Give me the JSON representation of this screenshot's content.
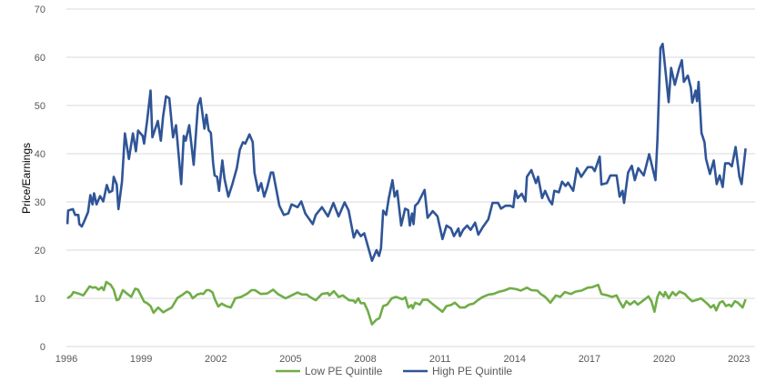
{
  "chart_data": {
    "type": "line",
    "title": "",
    "xlabel": "",
    "ylabel": "Price/Earnings",
    "xlim": [
      1996,
      2023.7
    ],
    "ylim": [
      0,
      70
    ],
    "yticks": [
      0,
      10,
      20,
      30,
      40,
      50,
      60,
      70
    ],
    "xticks": [
      1996,
      1999,
      2002,
      2005,
      2008,
      2011,
      2014,
      2017,
      2020,
      2023
    ],
    "ytick_labels": [
      "0",
      "10",
      "20",
      "30",
      "40",
      "50",
      "60",
      "70"
    ],
    "xtick_labels": [
      "1996",
      "1999",
      "2002",
      "2005",
      "2008",
      "2011",
      "2014",
      "2017",
      "2020",
      "2023"
    ],
    "grid": "horizontal",
    "legend_position": "bottom-center",
    "series": [
      {
        "name": "Low PE Quintile",
        "color": "#70AD47",
        "x": [
          1996.04,
          1996.2,
          1996.28,
          1996.48,
          1996.68,
          1996.8,
          1996.93,
          1997.05,
          1997.17,
          1997.29,
          1997.42,
          1997.5,
          1997.6,
          1997.78,
          1997.9,
          1998.02,
          1998.11,
          1998.27,
          1998.45,
          1998.6,
          1998.76,
          1998.88,
          1999.12,
          1999.24,
          1999.38,
          1999.5,
          1999.68,
          1999.89,
          2000.05,
          2000.23,
          2000.46,
          2000.65,
          2000.83,
          2000.95,
          2001.07,
          2001.26,
          2001.4,
          2001.5,
          2001.62,
          2001.74,
          2001.87,
          2001.96,
          2002.1,
          2002.23,
          2002.41,
          2002.6,
          2002.78,
          2003.02,
          2003.27,
          2003.43,
          2003.57,
          2003.8,
          2004.06,
          2004.3,
          2004.49,
          2004.8,
          2005.04,
          2005.28,
          2005.46,
          2005.65,
          2005.77,
          2006.01,
          2006.26,
          2006.5,
          2006.56,
          2006.74,
          2006.93,
          2007.1,
          2007.35,
          2007.54,
          2007.6,
          2007.72,
          2007.82,
          2007.96,
          2008.1,
          2008.27,
          2008.43,
          2008.57,
          2008.72,
          2008.88,
          2009.06,
          2009.24,
          2009.49,
          2009.61,
          2009.73,
          2009.85,
          2009.91,
          2010.0,
          2010.19,
          2010.31,
          2010.5,
          2010.68,
          2011.1,
          2011.26,
          2011.44,
          2011.6,
          2011.8,
          2011.99,
          2012.17,
          2012.35,
          2012.54,
          2012.72,
          2012.96,
          2013.15,
          2013.39,
          2013.57,
          2013.82,
          2014.06,
          2014.24,
          2014.49,
          2014.67,
          2014.91,
          2015.04,
          2015.22,
          2015.43,
          2015.65,
          2015.83,
          2016.01,
          2016.26,
          2016.44,
          2016.68,
          2016.93,
          2017.11,
          2017.35,
          2017.48,
          2017.72,
          2017.9,
          2018.09,
          2018.2,
          2018.35,
          2018.48,
          2018.63,
          2018.81,
          2018.94,
          2019.12,
          2019.37,
          2019.49,
          2019.61,
          2019.73,
          2019.82,
          2019.98,
          2020.04,
          2020.18,
          2020.34,
          2020.46,
          2020.62,
          2020.83,
          2020.99,
          2021.13,
          2021.32,
          2021.48,
          2021.62,
          2021.77,
          2021.87,
          2021.99,
          2022.09,
          2022.23,
          2022.35,
          2022.48,
          2022.6,
          2022.7,
          2022.84,
          2022.96,
          2023.15,
          2023.27
        ],
        "y": [
          10,
          10.6,
          11.3,
          11,
          10.6,
          11.5,
          12.5,
          12.2,
          12.3,
          11.8,
          12.3,
          11.7,
          13.4,
          12.8,
          11.8,
          9.6,
          9.8,
          11.7,
          10.9,
          10.3,
          12,
          11.8,
          9.3,
          9,
          8.4,
          7,
          8.1,
          7.1,
          7.6,
          8.1,
          10.1,
          10.7,
          11.4,
          11.1,
          10,
          10.8,
          11,
          10.9,
          11.7,
          11.7,
          11.2,
          9.8,
          8.3,
          8.9,
          8.4,
          8.1,
          10,
          10.3,
          11,
          11.7,
          11.7,
          10.9,
          11,
          11.8,
          10.9,
          10,
          10.6,
          11.2,
          10.8,
          10.8,
          10.3,
          9.6,
          10.9,
          11.1,
          10.6,
          11.5,
          10.3,
          10.6,
          9.6,
          9.5,
          9.1,
          10,
          9,
          9,
          7.4,
          4.6,
          5.5,
          5.9,
          8.4,
          8.7,
          10,
          10.3,
          9.8,
          10.2,
          8.1,
          8.6,
          7.9,
          9.1,
          8.7,
          9.7,
          9.7,
          8.9,
          7.2,
          8.4,
          8.6,
          9.1,
          8.1,
          8.1,
          8.7,
          8.9,
          9.7,
          10.3,
          10.8,
          10.9,
          11.4,
          11.6,
          12.1,
          11.9,
          11.6,
          12.2,
          11.7,
          11.6,
          10.9,
          10.3,
          9.1,
          10.6,
          10.3,
          11.3,
          10.9,
          11.4,
          11.6,
          12.2,
          12.3,
          12.8,
          10.9,
          10.6,
          10.3,
          10.6,
          9.4,
          8.1,
          9.4,
          8.7,
          9.4,
          8.7,
          9.4,
          10.4,
          9.4,
          7.2,
          10.3,
          11.3,
          10.4,
          11.3,
          10,
          11.3,
          10.6,
          11.4,
          10.9,
          10,
          9.4,
          9.7,
          10,
          9.4,
          8.7,
          8.1,
          8.6,
          7.5,
          9.1,
          9.4,
          8.4,
          8.7,
          8.3,
          9.4,
          9.1,
          8.1,
          9.8
        ]
      },
      {
        "name": "High PE Quintile",
        "color": "#2F5597",
        "x": [
          1996.04,
          1996.07,
          1996.26,
          1996.35,
          1996.48,
          1996.52,
          1996.62,
          1996.74,
          1996.87,
          1996.96,
          1997.05,
          1997.11,
          1997.21,
          1997.35,
          1997.48,
          1997.62,
          1997.72,
          1997.84,
          1997.9,
          1998.02,
          1998.09,
          1998.23,
          1998.35,
          1998.51,
          1998.67,
          1998.79,
          1998.88,
          1999.06,
          1999.12,
          1999.24,
          1999.38,
          1999.45,
          1999.67,
          1999.79,
          1999.88,
          2000.0,
          2000.13,
          2000.28,
          2000.4,
          2000.61,
          2000.71,
          2000.79,
          2000.93,
          2001.11,
          2001.28,
          2001.38,
          2001.54,
          2001.62,
          2001.71,
          2001.8,
          2001.89,
          2001.95,
          2002.05,
          2002.13,
          2002.26,
          2002.35,
          2002.5,
          2002.66,
          2002.84,
          2002.96,
          2003.09,
          2003.18,
          2003.35,
          2003.48,
          2003.55,
          2003.7,
          2003.82,
          2003.94,
          2004.06,
          2004.21,
          2004.3,
          2004.55,
          2004.73,
          2004.91,
          2005.04,
          2005.28,
          2005.43,
          2005.59,
          2005.89,
          2006.01,
          2006.26,
          2006.5,
          2006.72,
          2006.93,
          2007.17,
          2007.33,
          2007.54,
          2007.66,
          2007.82,
          2007.96,
          2008.27,
          2008.45,
          2008.55,
          2008.63,
          2008.72,
          2008.84,
          2008.94,
          2009.09,
          2009.18,
          2009.28,
          2009.44,
          2009.6,
          2009.72,
          2009.79,
          2009.88,
          2009.94,
          2010.0,
          2010.12,
          2010.38,
          2010.5,
          2010.71,
          2010.9,
          2011.1,
          2011.26,
          2011.44,
          2011.56,
          2011.74,
          2011.8,
          2011.93,
          2012.09,
          2012.23,
          2012.41,
          2012.54,
          2012.72,
          2012.94,
          2013.11,
          2013.33,
          2013.45,
          2013.63,
          2013.82,
          2013.94,
          2014.02,
          2014.12,
          2014.28,
          2014.43,
          2014.49,
          2014.67,
          2014.85,
          2014.94,
          2015.1,
          2015.22,
          2015.38,
          2015.5,
          2015.59,
          2015.77,
          2015.9,
          2016.04,
          2016.14,
          2016.35,
          2016.5,
          2016.67,
          2016.93,
          2017.11,
          2017.21,
          2017.41,
          2017.48,
          2017.7,
          2017.84,
          2018.09,
          2018.21,
          2018.33,
          2018.39,
          2018.55,
          2018.7,
          2018.82,
          2018.96,
          2019.18,
          2019.4,
          2019.65,
          2019.73,
          2019.85,
          2019.94,
          2020.04,
          2020.18,
          2020.28,
          2020.43,
          2020.59,
          2020.71,
          2020.79,
          2020.95,
          2021.07,
          2021.13,
          2021.26,
          2021.32,
          2021.38,
          2021.5,
          2021.62,
          2021.68,
          2021.84,
          2021.99,
          2022.11,
          2022.23,
          2022.35,
          2022.45,
          2022.6,
          2022.72,
          2022.87,
          2023.02,
          2023.11,
          2023.27
        ],
        "y": [
          25.4,
          28.2,
          28.5,
          27.3,
          27.3,
          25.4,
          24.9,
          26.3,
          27.9,
          31.4,
          29.5,
          31.8,
          29.5,
          31.2,
          30.1,
          33.5,
          32,
          32.3,
          35.2,
          33.6,
          28.5,
          34.2,
          44.2,
          38.9,
          44.2,
          40.5,
          44.8,
          43.7,
          42.1,
          46.8,
          53.1,
          43.4,
          46.8,
          42.7,
          47.6,
          51.9,
          51.5,
          43.4,
          45.9,
          33.7,
          43.7,
          42.7,
          45.9,
          37.7,
          50,
          51.5,
          45.2,
          48.1,
          44.9,
          44.3,
          38,
          35.5,
          35.2,
          32.3,
          38.6,
          34.8,
          31.1,
          33.6,
          37,
          40.8,
          42.4,
          42.1,
          44,
          42.4,
          36.1,
          32.3,
          33.9,
          31.1,
          33,
          36.1,
          36.1,
          29.2,
          27.3,
          27.6,
          29.5,
          28.9,
          30.1,
          27.6,
          25.4,
          27.3,
          28.9,
          27,
          29.8,
          27,
          29.9,
          28.2,
          22.6,
          24.1,
          22.9,
          23.5,
          17.8,
          20,
          18.8,
          20.4,
          28.2,
          27.3,
          30.7,
          34.5,
          31.1,
          32.3,
          25.1,
          28.6,
          28.3,
          25.1,
          27.6,
          25.4,
          29.2,
          29.8,
          32.5,
          26.7,
          28.1,
          27,
          22.3,
          25.1,
          24.5,
          22.9,
          24.5,
          22.9,
          24.2,
          25.1,
          24.2,
          25.7,
          23.2,
          24.8,
          26.4,
          29.8,
          29.8,
          28.6,
          29.2,
          29.2,
          28.9,
          32.3,
          30.8,
          31.7,
          30.1,
          35.2,
          36.6,
          33.9,
          35.2,
          30.8,
          32.3,
          30.4,
          29.5,
          32.3,
          32,
          34.2,
          33.3,
          34,
          32.3,
          37,
          35.2,
          37.2,
          37.2,
          36.4,
          39.4,
          33.6,
          33.9,
          35.5,
          35.5,
          31.1,
          32.3,
          29.8,
          36.1,
          37.5,
          34.5,
          37,
          35.5,
          39.9,
          34.5,
          43,
          61.9,
          62.8,
          57.8,
          50.7,
          57.8,
          54.3,
          57.5,
          59.4,
          54.9,
          56.2,
          53.7,
          50.6,
          53.1,
          50.9,
          54.9,
          44.3,
          42.4,
          38.9,
          35.8,
          38.6,
          33.7,
          35.5,
          33.1,
          38,
          38,
          37.4,
          41.4,
          35.2,
          33.7,
          41.1
        ]
      }
    ]
  }
}
